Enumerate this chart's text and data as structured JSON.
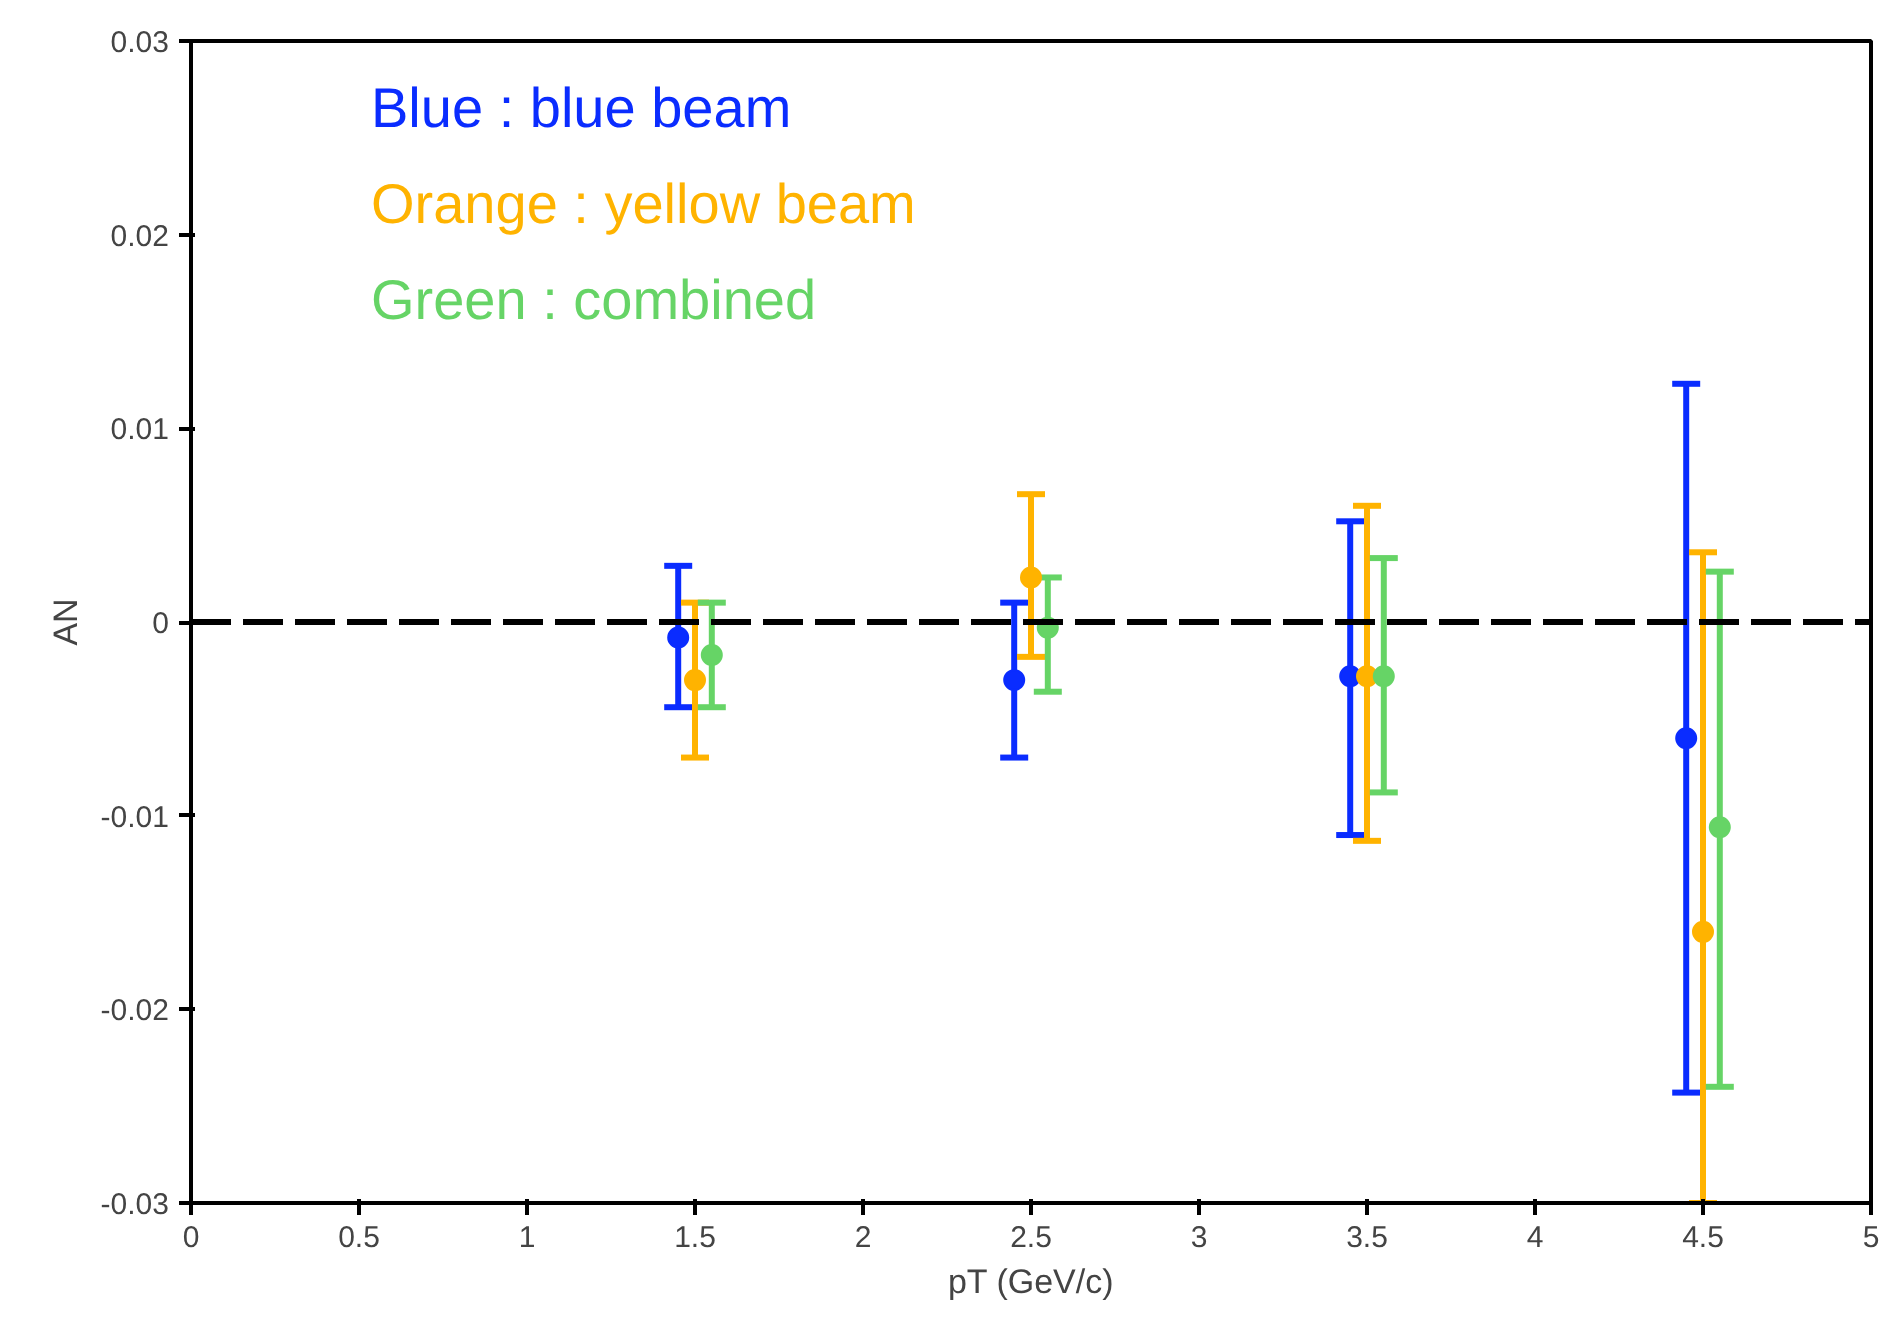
{
  "chart_data": {
    "type": "scatter",
    "xlabel": "pT (GeV/c)",
    "ylabel": "AN",
    "xlim": [
      0,
      5
    ],
    "ylim": [
      -0.03,
      0.03
    ],
    "xticks": [
      0,
      0.5,
      1,
      1.5,
      2,
      2.5,
      3,
      3.5,
      4,
      4.5,
      5
    ],
    "yticks": [
      -0.03,
      -0.02,
      -0.01,
      0,
      0.01,
      0.02,
      0.03
    ],
    "grid": false,
    "legend": "top left",
    "marker": "circle",
    "ref_lines": [
      {
        "axis": "y",
        "value": 0,
        "line_style": "dashed",
        "color": "#000000"
      }
    ],
    "series": [
      {
        "name": "Blue   : blue beam",
        "color": "#0a2cff",
        "x": [
          1.45,
          2.45,
          3.45,
          4.45
        ],
        "values": [
          -0.0008,
          -0.003,
          -0.0028,
          -0.006
        ],
        "errors": [
          [
            -0.0044,
            0.0029
          ],
          [
            -0.007,
            0.001
          ],
          [
            -0.011,
            0.0052
          ],
          [
            -0.0243,
            0.0123
          ]
        ]
      },
      {
        "name": "Orange : yellow beam",
        "color": "#ffb300",
        "x": [
          1.5,
          2.5,
          3.5,
          4.5
        ],
        "values": [
          -0.003,
          0.0023,
          -0.0028,
          -0.016
        ],
        "errors": [
          [
            -0.007,
            0.001
          ],
          [
            -0.0018,
            0.0066
          ],
          [
            -0.0113,
            0.006
          ],
          [
            -0.03,
            0.0036
          ]
        ]
      },
      {
        "name": "Green  : combined",
        "color": "#66d466",
        "x": [
          1.55,
          2.55,
          3.55,
          4.55
        ],
        "values": [
          -0.0017,
          -0.0003,
          -0.0028,
          -0.0106
        ],
        "errors": [
          [
            -0.0044,
            0.001
          ],
          [
            -0.0036,
            0.0023
          ],
          [
            -0.0088,
            0.0033
          ],
          [
            -0.024,
            0.0026
          ]
        ]
      }
    ]
  }
}
